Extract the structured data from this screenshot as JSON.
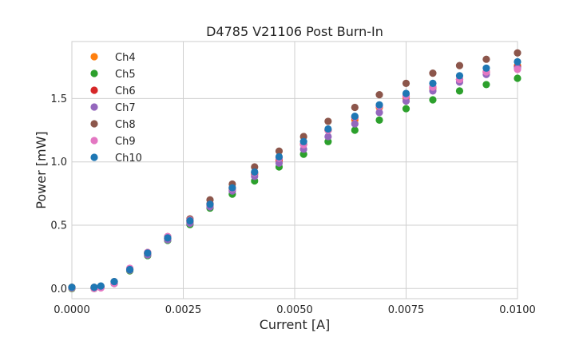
{
  "chart_data": {
    "type": "scatter",
    "title": "D4785 V21106 Post Burn-In",
    "xlabel": "Current [A]",
    "ylabel": "Power [mW]",
    "xlim": [
      0.0,
      0.01
    ],
    "ylim": [
      -0.08,
      1.95
    ],
    "xticks": [
      0.0,
      0.0025,
      0.005,
      0.0075,
      0.01
    ],
    "xtick_labels": [
      "0.0000",
      "0.0025",
      "0.0050",
      "0.0075",
      "0.0100"
    ],
    "yticks": [
      0.0,
      0.5,
      1.0,
      1.5
    ],
    "ytick_labels": [
      "0.0",
      "0.5",
      "1.0",
      "1.5"
    ],
    "grid": true,
    "legend_position": "top-left",
    "x": [
      0.0,
      0.0005,
      0.00065,
      0.00095,
      0.0013,
      0.0017,
      0.00215,
      0.00265,
      0.0031,
      0.0036,
      0.0041,
      0.00465,
      0.0052,
      0.00575,
      0.00635,
      0.0069,
      0.0075,
      0.0081,
      0.0087,
      0.0093,
      0.01
    ],
    "series": [
      {
        "name": "Ch4",
        "color": "#ff7f0e",
        "values": [
          0.01,
          0.005,
          0.01,
          0.045,
          0.15,
          0.275,
          0.395,
          0.525,
          0.655,
          0.78,
          0.9,
          1.0,
          1.14,
          1.25,
          1.33,
          1.43,
          1.5,
          1.58,
          1.65,
          1.71,
          1.76
        ]
      },
      {
        "name": "Ch5",
        "color": "#2ca02c",
        "values": [
          0.0,
          0.0,
          0.01,
          0.04,
          0.14,
          0.26,
          0.38,
          0.505,
          0.635,
          0.745,
          0.85,
          0.96,
          1.06,
          1.16,
          1.25,
          1.33,
          1.42,
          1.49,
          1.56,
          1.61,
          1.66
        ]
      },
      {
        "name": "Ch6",
        "color": "#d62728",
        "values": [
          0.005,
          0.005,
          0.015,
          0.045,
          0.15,
          0.275,
          0.395,
          0.535,
          0.67,
          0.795,
          0.91,
          1.02,
          1.14,
          1.25,
          1.35,
          1.44,
          1.52,
          1.59,
          1.65,
          1.71,
          1.75
        ]
      },
      {
        "name": "Ch7",
        "color": "#9467bd",
        "values": [
          0.005,
          0.005,
          0.01,
          0.04,
          0.145,
          0.265,
          0.385,
          0.515,
          0.645,
          0.77,
          0.885,
          0.99,
          1.1,
          1.2,
          1.3,
          1.39,
          1.48,
          1.56,
          1.63,
          1.69,
          1.74
        ]
      },
      {
        "name": "Ch8",
        "color": "#8c564b",
        "values": [
          0.01,
          0.01,
          0.015,
          0.055,
          0.155,
          0.285,
          0.41,
          0.55,
          0.7,
          0.825,
          0.96,
          1.085,
          1.2,
          1.32,
          1.43,
          1.53,
          1.62,
          1.7,
          1.76,
          1.81,
          1.86
        ]
      },
      {
        "name": "Ch9",
        "color": "#e377c2",
        "values": [
          0.005,
          0.0,
          0.005,
          0.04,
          0.16,
          0.285,
          0.41,
          0.54,
          0.665,
          0.79,
          0.915,
          1.03,
          1.135,
          1.25,
          1.355,
          1.44,
          1.52,
          1.59,
          1.65,
          1.71,
          1.73
        ]
      },
      {
        "name": "Ch10",
        "color": "#1f77b4",
        "values": [
          0.01,
          0.01,
          0.02,
          0.055,
          0.15,
          0.28,
          0.4,
          0.535,
          0.665,
          0.795,
          0.92,
          1.04,
          1.16,
          1.26,
          1.36,
          1.45,
          1.54,
          1.62,
          1.68,
          1.74,
          1.79
        ]
      }
    ]
  }
}
